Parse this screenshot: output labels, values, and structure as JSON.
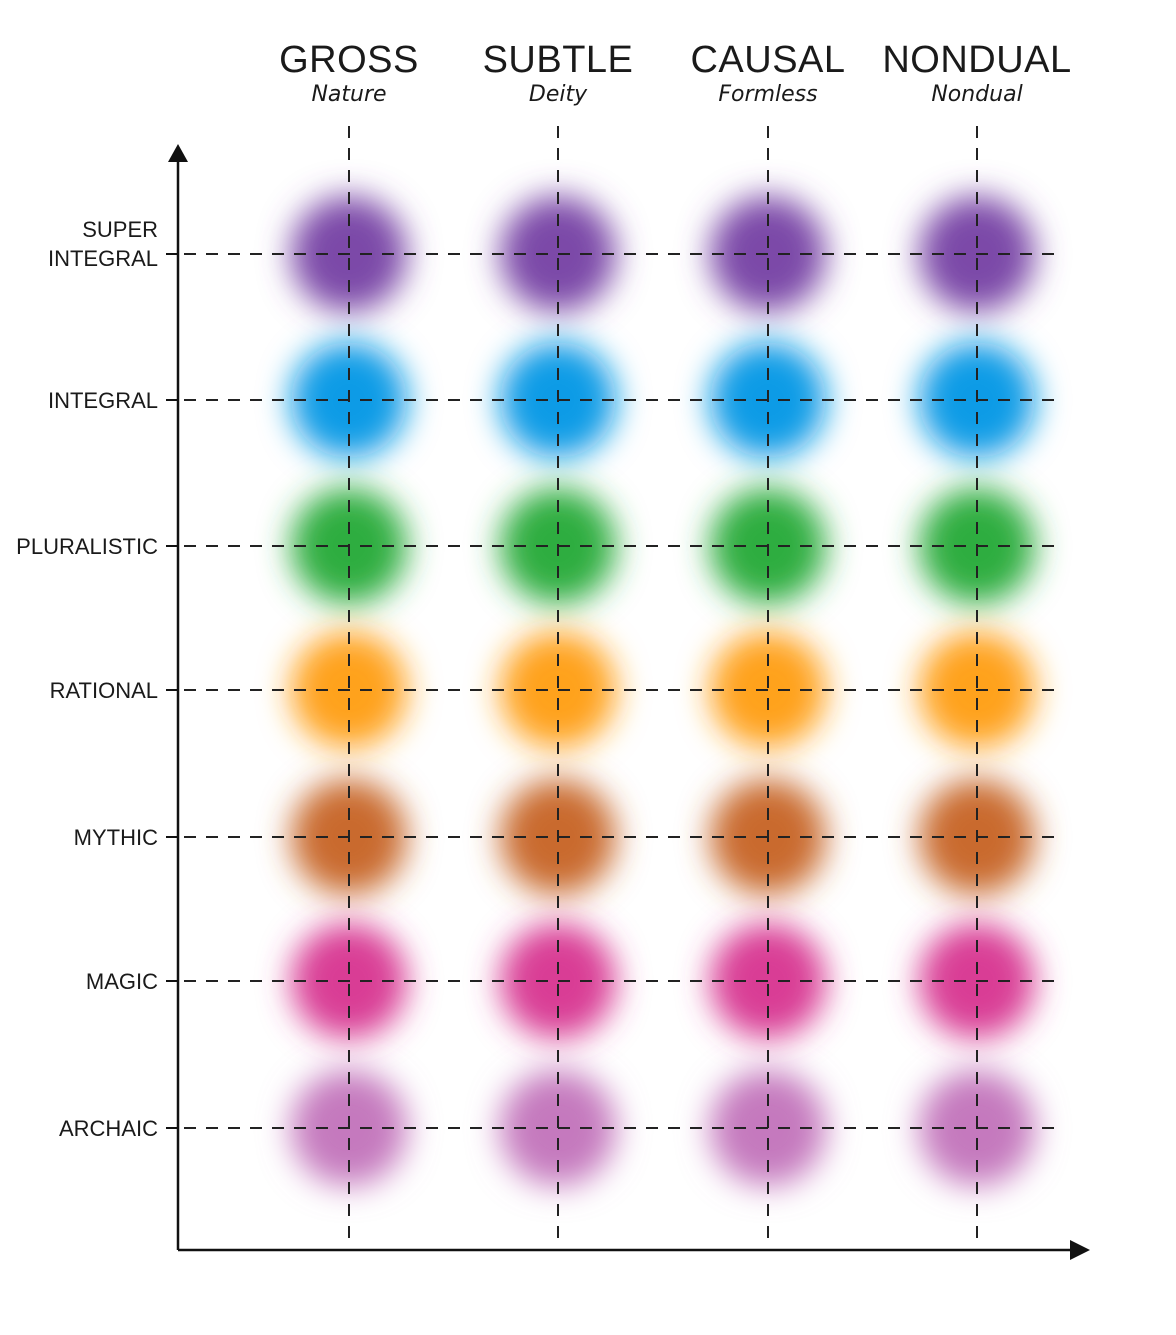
{
  "columns": [
    {
      "title": "GROSS",
      "subtitle": "Nature"
    },
    {
      "title": "SUBTLE",
      "subtitle": "Deity"
    },
    {
      "title": "CAUSAL",
      "subtitle": "Formless"
    },
    {
      "title": "NONDUAL",
      "subtitle": "Nondual"
    }
  ],
  "rows": [
    {
      "label_lines": [
        "SUPER",
        "INTEGRAL"
      ],
      "color": "#7b4aa8"
    },
    {
      "label_lines": [
        "INTEGRAL"
      ],
      "color": "#0e9be6"
    },
    {
      "label_lines": [
        "PLURALISTIC"
      ],
      "color": "#2fad3f"
    },
    {
      "label_lines": [
        "RATIONAL"
      ],
      "color": "#ffa21f"
    },
    {
      "label_lines": [
        "MYTHIC"
      ],
      "color": "#c96a2e"
    },
    {
      "label_lines": [
        "MAGIC"
      ],
      "color": "#d93c95"
    },
    {
      "label_lines": [
        "ARCHAIC"
      ],
      "color": "#c579be"
    }
  ]
}
